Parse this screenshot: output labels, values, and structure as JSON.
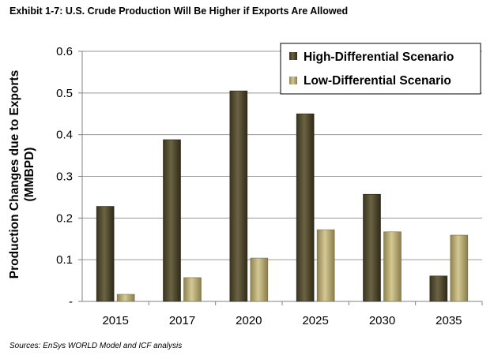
{
  "exhibit_title": "Exhibit 1-7:  U.S. Crude Production Will Be Higher if Exports Are Allowed",
  "source": "Sources:  EnSys WORLD Model and ICF analysis",
  "chart_data": {
    "type": "bar",
    "categories": [
      "2015",
      "2017",
      "2020",
      "2025",
      "2030",
      "2035"
    ],
    "series": [
      {
        "name": "High-Differential Scenario",
        "values": [
          0.228,
          0.388,
          0.505,
          0.45,
          0.257,
          0.061
        ],
        "color": "#5b5335"
      },
      {
        "name": "Low-Differential Scenario",
        "values": [
          0.017,
          0.057,
          0.104,
          0.172,
          0.167,
          0.159
        ],
        "color": "#b9ad77"
      }
    ],
    "ylabel_line1": "Production Changes due to Exports",
    "ylabel_line2": "(MMBPD)",
    "ylim": [
      0,
      0.6
    ],
    "yticks": [
      {
        "value": 0,
        "label": "-"
      },
      {
        "value": 0.1,
        "label": "0.1"
      },
      {
        "value": 0.2,
        "label": "0.2"
      },
      {
        "value": 0.3,
        "label": "0.3"
      },
      {
        "value": 0.4,
        "label": "0.4"
      },
      {
        "value": 0.5,
        "label": "0.5"
      },
      {
        "value": 0.6,
        "label": "0.6"
      }
    ],
    "grid": true,
    "legend_position": "top-right"
  }
}
